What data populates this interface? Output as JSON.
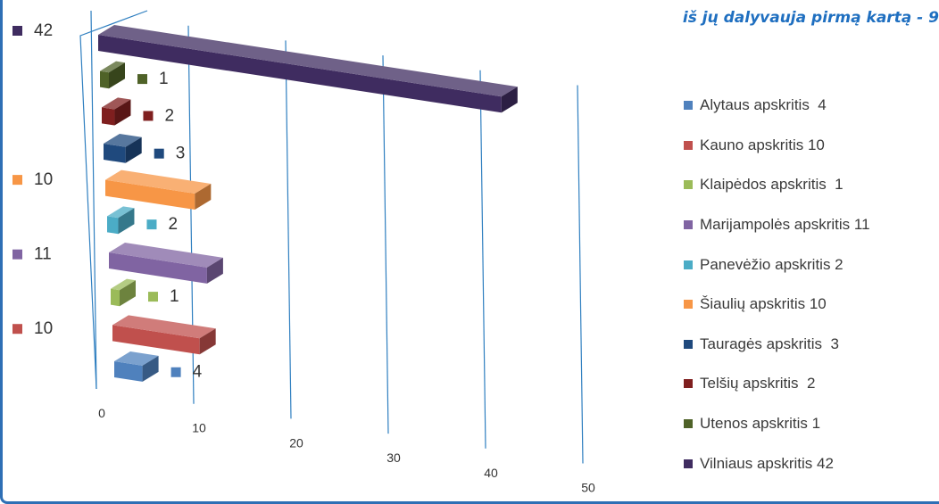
{
  "subtitle": "iš jų dalyvauja pirmą kartą - 9",
  "chart_data": {
    "type": "bar",
    "orientation": "horizontal",
    "style": "3d",
    "xlim": [
      0,
      50
    ],
    "x_ticks": [
      "0",
      "10",
      "20",
      "30",
      "40",
      "50"
    ],
    "series": [
      {
        "name": "Alytaus apskritis  4",
        "value": 4,
        "label": "4",
        "color": "#4f81bd"
      },
      {
        "name": "Kauno apskritis 10",
        "value": 10,
        "label": "10",
        "color": "#c0504d"
      },
      {
        "name": "Klaipėdos apskritis  1",
        "value": 1,
        "label": "1",
        "color": "#9bbb59"
      },
      {
        "name": "Marijampolės apskritis 11",
        "value": 11,
        "label": "11",
        "color": "#8064a2"
      },
      {
        "name": "Panevėžio apskritis 2",
        "value": 2,
        "label": "2",
        "color": "#4bacc6"
      },
      {
        "name": "Šiaulių apskritis 10",
        "value": 10,
        "label": "10",
        "color": "#f79646"
      },
      {
        "name": "Tauragės apskritis  3",
        "value": 3,
        "label": "3",
        "color": "#1f497d"
      },
      {
        "name": "Telšių apskritis  2",
        "value": 2,
        "label": "2",
        "color": "#7f1f1f"
      },
      {
        "name": "Utenos apskritis 1",
        "value": 1,
        "label": "1",
        "color": "#4f6228"
      },
      {
        "name": "Vilniaus apskritis 42",
        "value": 42,
        "label": "42",
        "color": "#3f2c60"
      }
    ]
  }
}
